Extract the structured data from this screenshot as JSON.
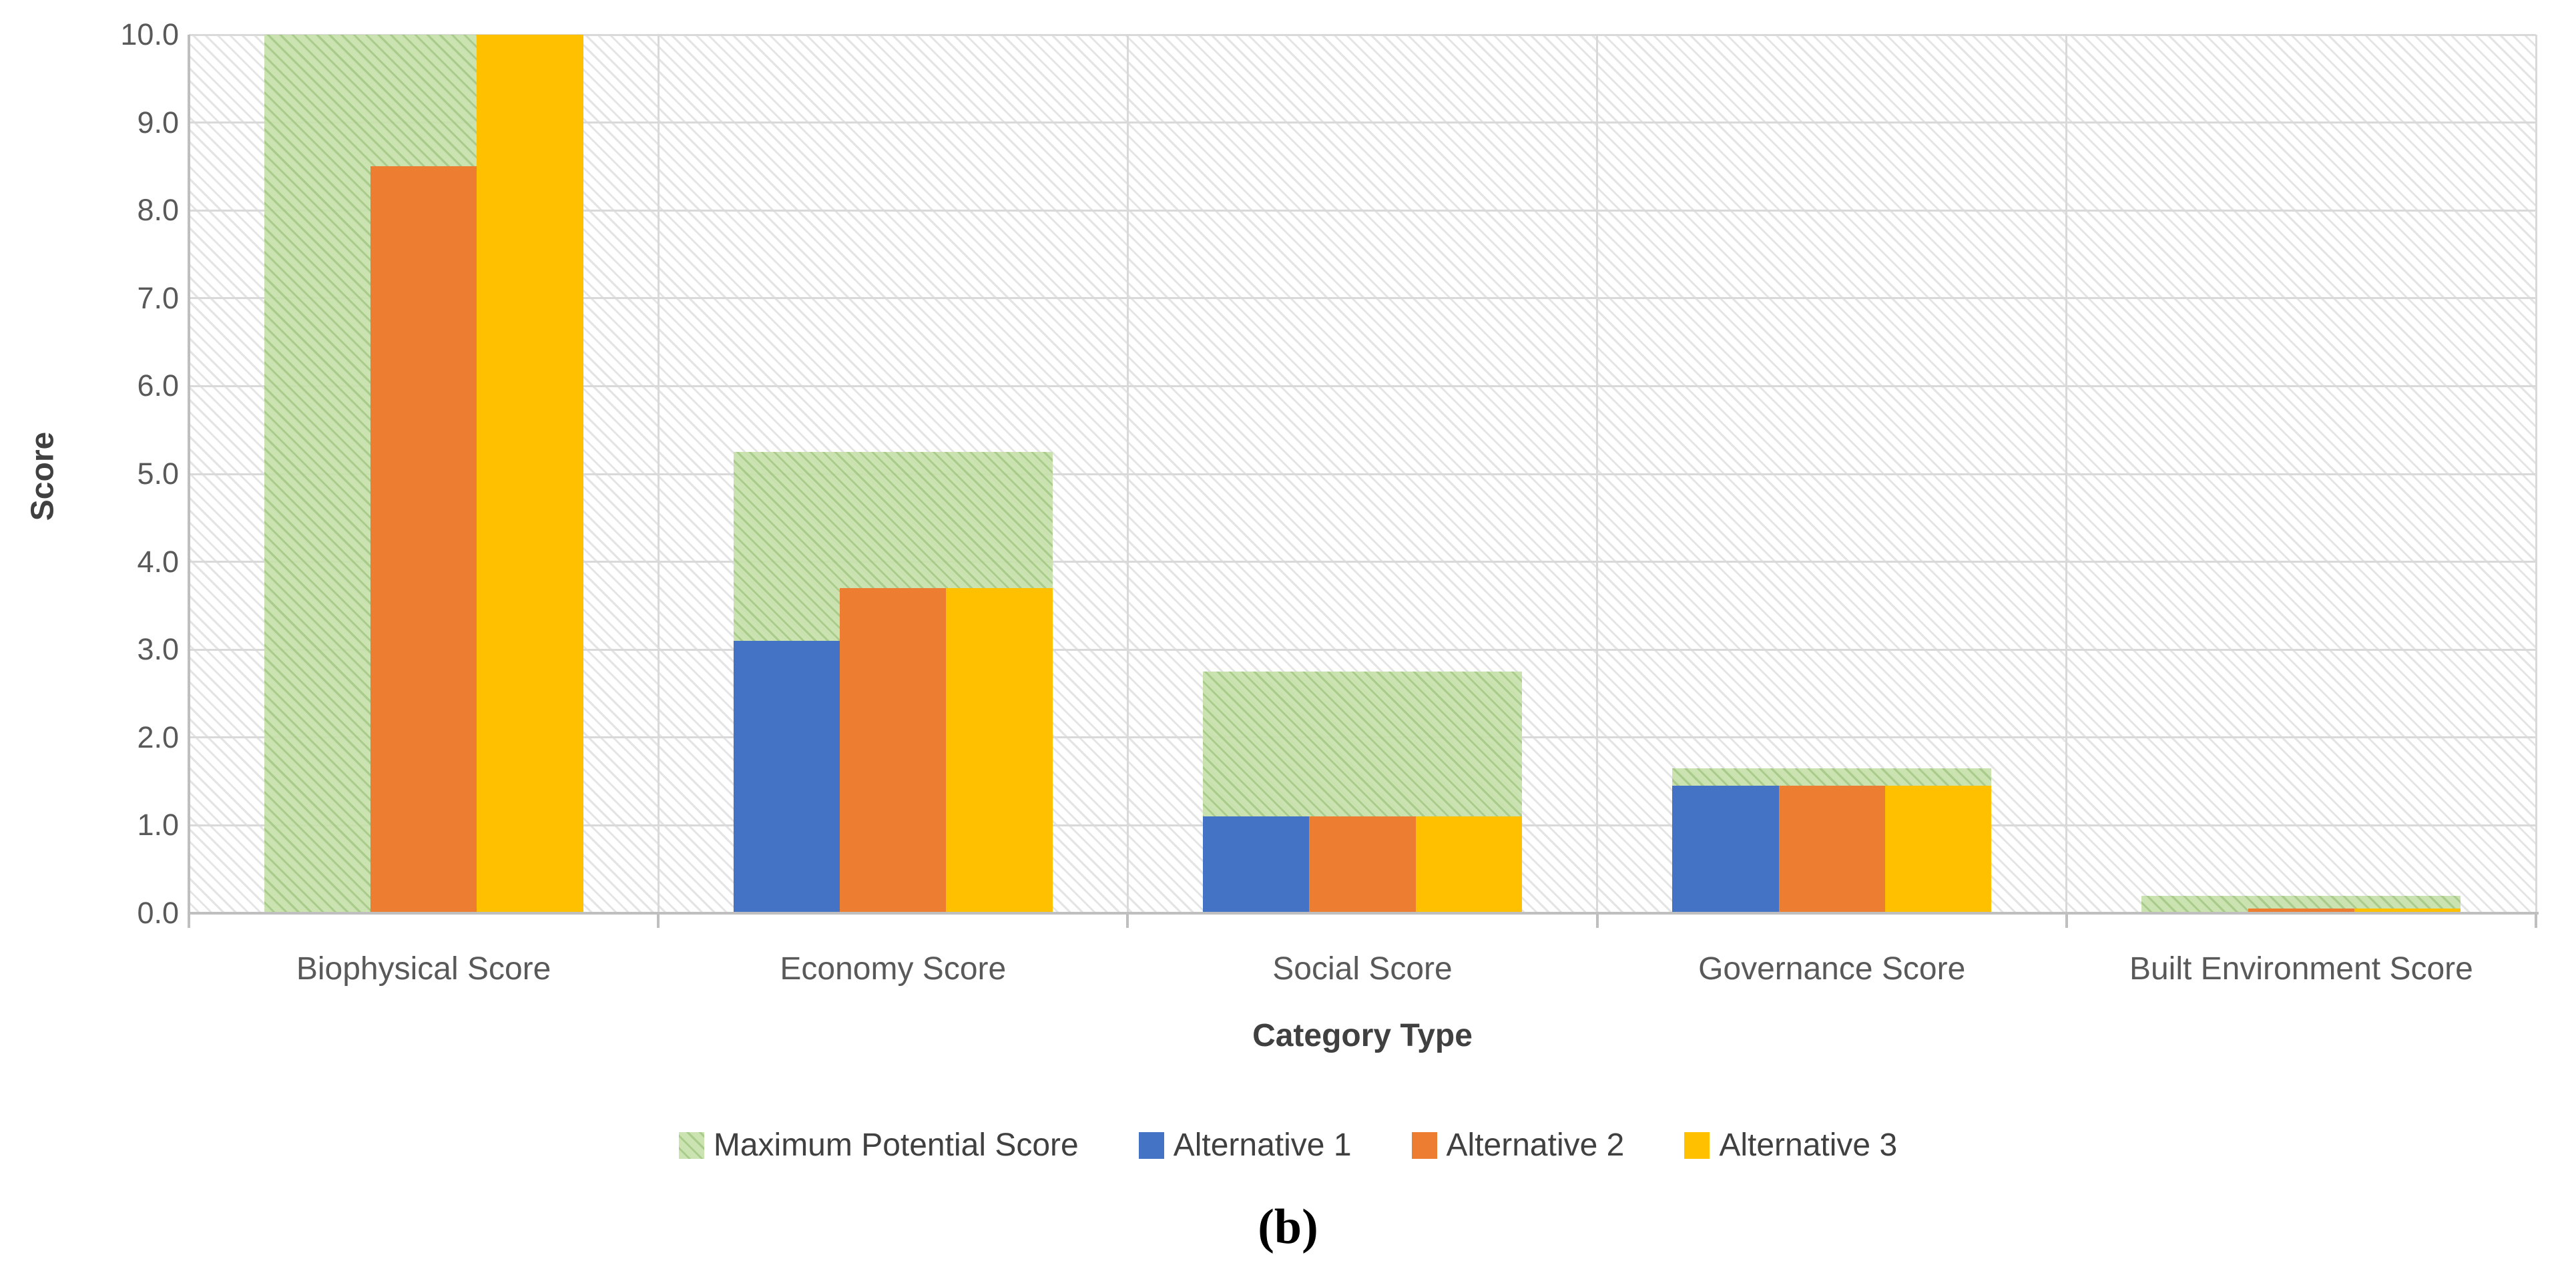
{
  "figure": {
    "caption": "(b)"
  },
  "chart_data": {
    "type": "bar",
    "title": "",
    "xlabel": "Category Type",
    "ylabel": "Score",
    "ylim": [
      0,
      10
    ],
    "ytick_step": 1.0,
    "ytick_labels": [
      "0.0",
      "1.0",
      "2.0",
      "3.0",
      "4.0",
      "5.0",
      "6.0",
      "7.0",
      "8.0",
      "9.0",
      "10.0"
    ],
    "grid": true,
    "plot_background": "light-gray diagonal hatch",
    "legend_position": "bottom-center",
    "categories": [
      "Biophysical Score",
      "Economy Score",
      "Social Score",
      "Governance Score",
      "Built Environment Score"
    ],
    "series": [
      {
        "name": "Maximum Potential Score",
        "style": "wide-hatched-background-bar",
        "color": "#C5E0A9",
        "hatch_color": "#7FAF5C",
        "values": [
          10.0,
          5.25,
          2.75,
          1.65,
          0.2
        ]
      },
      {
        "name": "Alternative 1",
        "style": "solid",
        "color": "#4472C4",
        "values": [
          0.0,
          3.1,
          1.1,
          1.45,
          0.0
        ]
      },
      {
        "name": "Alternative 2",
        "style": "solid",
        "color": "#ED7D31",
        "values": [
          8.5,
          3.7,
          1.1,
          1.45,
          0.05
        ]
      },
      {
        "name": "Alternative 3",
        "style": "solid",
        "color": "#FFC000",
        "values": [
          10.0,
          3.7,
          1.1,
          1.45,
          0.05
        ]
      }
    ]
  },
  "colors": {
    "gridline": "#D9D9D9",
    "axis_line": "#BFBFBF",
    "tick_text": "#595959",
    "title_text": "#404040",
    "background_hatch": "#DCDCDC"
  }
}
